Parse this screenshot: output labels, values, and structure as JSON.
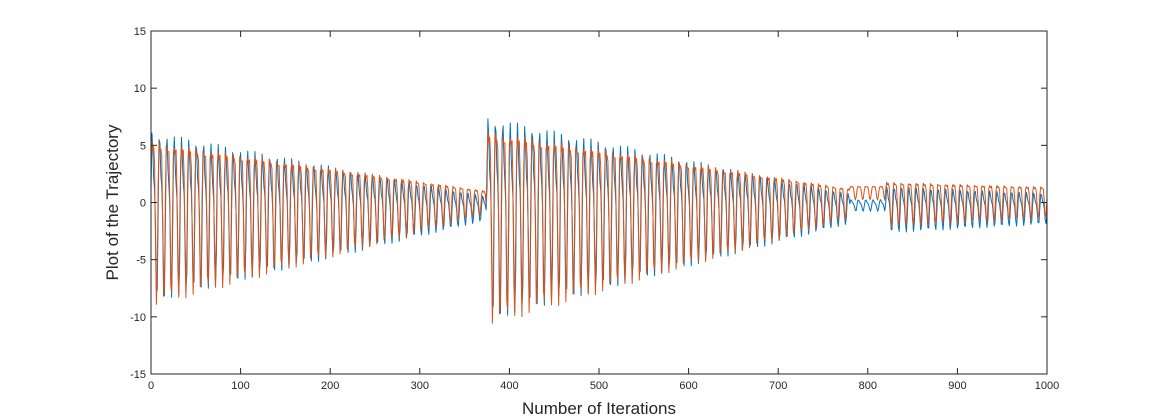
{
  "chart_data": {
    "type": "line",
    "title": "",
    "xlabel": "Number of Iterations",
    "ylabel": "Plot of the Trajectory",
    "xlim": [
      0,
      1000
    ],
    "ylim": [
      -15,
      15
    ],
    "x_ticks": [
      0,
      100,
      200,
      300,
      400,
      500,
      600,
      700,
      800,
      900,
      1000
    ],
    "y_ticks": [
      -15,
      -10,
      -5,
      0,
      5,
      10,
      15
    ],
    "grid": false,
    "legend": "none",
    "sample_step": 1,
    "series": [
      {
        "color": "#0072BD",
        "segments": [
          {
            "x_start": 0,
            "x_end": 375,
            "period": 8.2,
            "amp_start": 8.8,
            "amp_end": 1.2,
            "baseline": -0.4
          },
          {
            "x_start": 375,
            "x_end": 780,
            "period": 8.2,
            "amp_start": 10.5,
            "amp_end": 1.5,
            "baseline": -0.4
          },
          {
            "x_start": 780,
            "x_end": 820,
            "period": 8.2,
            "amp_start": 0.6,
            "amp_end": 0.6,
            "baseline": -0.2
          },
          {
            "x_start": 820,
            "x_end": 1000,
            "period": 8.2,
            "amp_start": 2.4,
            "amp_end": 1.6,
            "baseline": -0.4
          }
        ]
      },
      {
        "color": "#D95319",
        "segments": [
          {
            "x_start": 0,
            "x_end": 375,
            "period": 8.2,
            "amp_start": 9.5,
            "amp_end": 1.3,
            "baseline": 0.3
          },
          {
            "x_start": 375,
            "x_end": 780,
            "period": 8.2,
            "amp_start": 11.2,
            "amp_end": 1.7,
            "baseline": 0.3
          },
          {
            "x_start": 780,
            "x_end": 820,
            "period": 8.2,
            "amp_start": 0.8,
            "amp_end": 0.8,
            "baseline": 1.0
          },
          {
            "x_start": 820,
            "x_end": 1000,
            "period": 8.2,
            "amp_start": 2.6,
            "amp_end": 1.8,
            "baseline": 0.4
          }
        ]
      }
    ]
  }
}
